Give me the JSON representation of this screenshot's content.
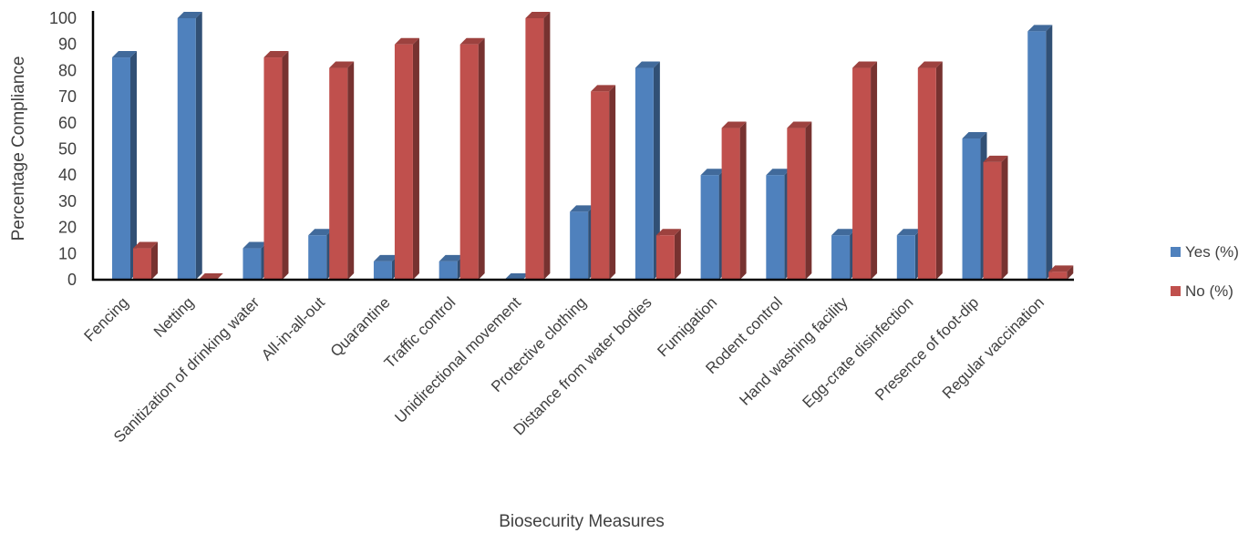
{
  "chart_data": {
    "type": "bar",
    "style": "3d-clustered-column",
    "categories": [
      "Fencing",
      "Netting",
      "Sanitization of drinking water",
      "All-in-all-out",
      "Quarantine",
      "Traffic control",
      "Unidirectional movement",
      "Protective clothing",
      "Distance from water bodies",
      "Fumigation",
      "Rodent control",
      "Hand washing facility",
      "Egg-crate disinfection",
      "Presence of foot-dip",
      "Regular vaccination"
    ],
    "series": [
      {
        "name": "Yes (%)",
        "color": "#4F81BD",
        "values": [
          85,
          100,
          12,
          17,
          7,
          7,
          0,
          26,
          81,
          40,
          40,
          17,
          17,
          54,
          95
        ]
      },
      {
        "name": "No (%)",
        "color": "#C0504D",
        "values": [
          12,
          0,
          85,
          81,
          90,
          90,
          100,
          72,
          17,
          58,
          58,
          81,
          81,
          45,
          3
        ]
      }
    ],
    "xlabel": "Biosecurity Measures",
    "ylabel": "Percentage Compliance",
    "ylim": [
      0,
      100
    ],
    "yticks": [
      0,
      10,
      20,
      30,
      40,
      50,
      60,
      70,
      80,
      90,
      100
    ],
    "grid": false,
    "legend_position": "right"
  }
}
